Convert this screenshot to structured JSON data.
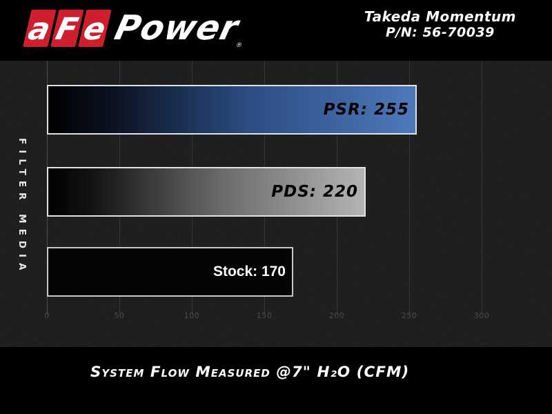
{
  "header": {
    "logo": {
      "letters": [
        "a",
        "F",
        "e"
      ],
      "word": "Power",
      "registered": "®",
      "red": "#cf1f2e"
    },
    "product": {
      "line1": "Takeda Momentum",
      "line2": "P/N: 56-70039"
    }
  },
  "chart_data": {
    "type": "bar",
    "orientation": "horizontal",
    "title": "",
    "categories": [
      "PSR",
      "PDS",
      "Stock"
    ],
    "values": [
      255,
      220,
      170
    ],
    "bars": [
      {
        "category": "PSR",
        "value": 255,
        "label": "PSR: 255",
        "label_color": "#000000",
        "label_font": "techno",
        "border": "#dfe3e8",
        "gradient": [
          "#000000 0%",
          "#0b1322 18%",
          "#2c4d83 55%",
          "#4d79bb 100%"
        ]
      },
      {
        "category": "PDS",
        "value": 220,
        "label": "PDS: 220",
        "label_color": "#000000",
        "label_font": "techno",
        "border": "#dfe3e8",
        "gradient": [
          "#000000 0%",
          "#151515 15%",
          "#6b6b6b 55%",
          "#b4b4b4 100%"
        ]
      },
      {
        "category": "Stock",
        "value": 170,
        "label": "Stock: 170",
        "label_color": "#ffffff",
        "label_font": "plain",
        "border": "#c9c9c9",
        "gradient": [
          "#050505 0%",
          "#050505 100%"
        ]
      }
    ],
    "xlabel": "System Flow Measured @7\" H₂O (CFM)",
    "ylabel": "FILTER MEDIA",
    "xlim": [
      0,
      320
    ],
    "xticks": [
      0,
      50,
      100,
      150,
      200,
      250,
      300
    ],
    "grid": true,
    "legend": "none",
    "gridline_color": "#2f2f2f",
    "tick_color": "#4b4b4b",
    "plot_background": "#131313",
    "frame_background": "#000000"
  }
}
